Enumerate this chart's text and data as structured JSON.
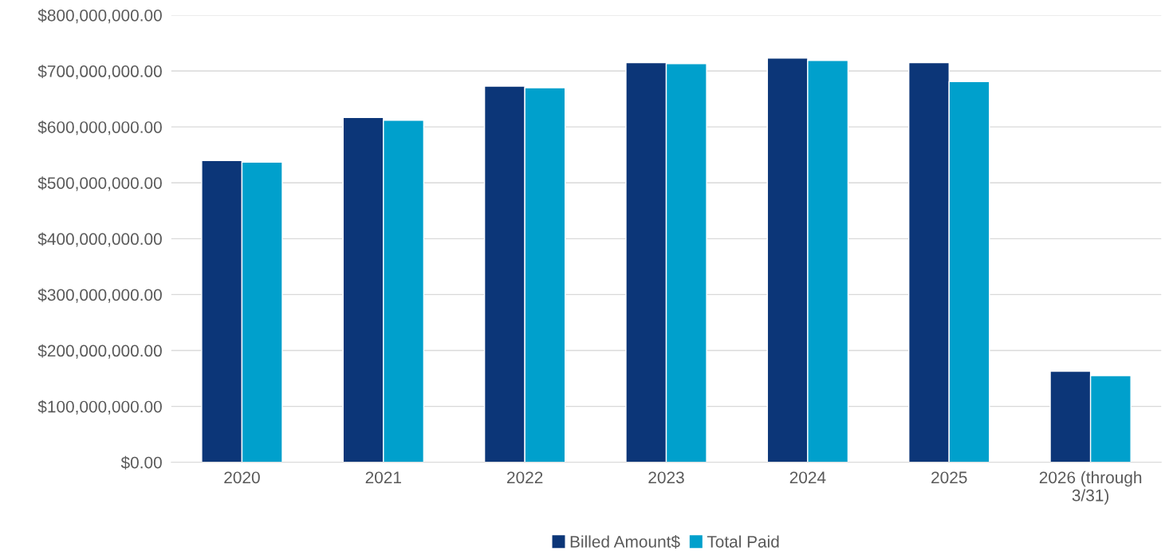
{
  "chart_data": {
    "type": "bar",
    "categories": [
      "2020",
      "2021",
      "2022",
      "2023",
      "2024",
      "2025",
      "2026 (through\n3/31)"
    ],
    "series": [
      {
        "name": "Billed Amount$",
        "color": "#0c3678",
        "values": [
          540000000,
          617000000,
          673000000,
          715000000,
          723000000,
          715000000,
          163000000
        ]
      },
      {
        "name": "Total Paid",
        "color": "#00a0cc",
        "values": [
          537000000,
          612000000,
          670000000,
          713000000,
          719000000,
          681000000,
          155000000
        ]
      }
    ],
    "ylim": [
      0,
      800000000
    ],
    "yticks": [
      {
        "value": 0,
        "label": "$0.00"
      },
      {
        "value": 100000000,
        "label": "$100,000,000.00"
      },
      {
        "value": 200000000,
        "label": "$200,000,000.00"
      },
      {
        "value": 300000000,
        "label": "$300,000,000.00"
      },
      {
        "value": 400000000,
        "label": "$400,000,000.00"
      },
      {
        "value": 500000000,
        "label": "$500,000,000.00"
      },
      {
        "value": 600000000,
        "label": "$600,000,000.00"
      },
      {
        "value": 700000000,
        "label": "$700,000,000.00"
      },
      {
        "value": 800000000,
        "label": "$800,000,000.00"
      }
    ],
    "grid": "y",
    "legend": "bottom"
  }
}
